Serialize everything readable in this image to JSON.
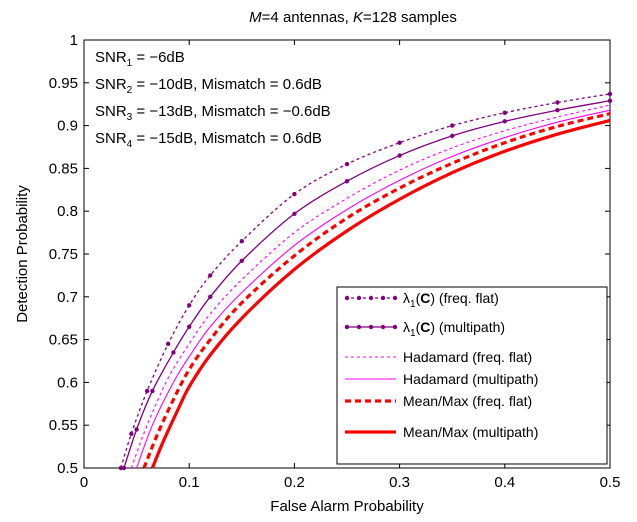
{
  "chart_data": {
    "type": "line",
    "title": {
      "m_symbol": "M",
      "m_text": "=4 antennas, ",
      "k_symbol": "K",
      "k_text": "=128 samples"
    },
    "xlabel": "False Alarm Probability",
    "ylabel": "Detection Probability",
    "xlim": [
      0,
      0.5
    ],
    "ylim": [
      0.5,
      1
    ],
    "xticks": [
      0,
      0.1,
      0.2,
      0.3,
      0.4,
      0.5
    ],
    "xtick_labels": [
      "0",
      "0.1",
      "0.2",
      "0.3",
      "0.4",
      "0.5"
    ],
    "yticks": [
      0.5,
      0.55,
      0.6,
      0.65,
      0.7,
      0.75,
      0.8,
      0.85,
      0.9,
      0.95,
      1
    ],
    "ytick_labels": [
      "0.5",
      "0.55",
      "0.6",
      "0.65",
      "0.7",
      "0.75",
      "0.8",
      "0.85",
      "0.9",
      "0.95",
      "1"
    ],
    "grid": false,
    "legend_position": "lower-right",
    "annotations": [
      {
        "base": "SNR",
        "sub": "1",
        "rest": " = −6dB"
      },
      {
        "base": "SNR",
        "sub": "2",
        "rest": " = −10dB, Mismatch = 0.6dB"
      },
      {
        "base": "SNR",
        "sub": "3",
        "rest": " = −13dB, Mismatch = −0.6dB"
      },
      {
        "base": "SNR",
        "sub": "4",
        "rest": " = −15dB, Mismatch = 0.6dB"
      }
    ],
    "series": [
      {
        "legend_symbol": "λ",
        "legend_sub": "1",
        "legend_paren": "(",
        "legend_bold": "C",
        "legend_rest": ") (freq. flat)",
        "color": "#800080",
        "dash": "3,3",
        "width": 1.3,
        "marker": true,
        "x": [
          0.035,
          0.045,
          0.06,
          0.08,
          0.1,
          0.12,
          0.15,
          0.2,
          0.25,
          0.3,
          0.35,
          0.4,
          0.45,
          0.5
        ],
        "y": [
          0.5,
          0.54,
          0.59,
          0.645,
          0.69,
          0.725,
          0.765,
          0.82,
          0.855,
          0.88,
          0.9,
          0.915,
          0.927,
          0.937
        ]
      },
      {
        "legend_symbol": "λ",
        "legend_sub": "1",
        "legend_paren": "(",
        "legend_bold": "C",
        "legend_rest": ") (multipath)",
        "color": "#800080",
        "dash": "",
        "width": 1.3,
        "marker": true,
        "x": [
          0.038,
          0.05,
          0.065,
          0.085,
          0.1,
          0.12,
          0.15,
          0.2,
          0.25,
          0.3,
          0.35,
          0.4,
          0.45,
          0.5
        ],
        "y": [
          0.5,
          0.545,
          0.59,
          0.635,
          0.665,
          0.7,
          0.742,
          0.797,
          0.835,
          0.865,
          0.888,
          0.905,
          0.918,
          0.929
        ]
      },
      {
        "legend_text": "Hadamard (freq. flat)",
        "color": "#ff00ff",
        "dash": "3,3",
        "width": 1.1,
        "marker": false,
        "x": [
          0.045,
          0.06,
          0.08,
          0.1,
          0.12,
          0.15,
          0.2,
          0.25,
          0.3,
          0.35,
          0.4,
          0.45,
          0.5
        ],
        "y": [
          0.5,
          0.55,
          0.605,
          0.645,
          0.68,
          0.72,
          0.775,
          0.815,
          0.848,
          0.874,
          0.894,
          0.91,
          0.924
        ]
      },
      {
        "legend_text": "Hadamard (multipath)",
        "color": "#ff00ff",
        "dash": "",
        "width": 1.1,
        "marker": false,
        "x": [
          0.05,
          0.065,
          0.085,
          0.1,
          0.12,
          0.15,
          0.2,
          0.25,
          0.3,
          0.35,
          0.4,
          0.45,
          0.5
        ],
        "y": [
          0.5,
          0.55,
          0.6,
          0.63,
          0.665,
          0.705,
          0.76,
          0.802,
          0.836,
          0.864,
          0.886,
          0.904,
          0.918
        ]
      },
      {
        "legend_text": "Mean/Max (freq. flat)",
        "color": "#ff0000",
        "dash": "6,4",
        "width": 3.2,
        "marker": false,
        "x": [
          0.057,
          0.07,
          0.085,
          0.1,
          0.12,
          0.15,
          0.2,
          0.25,
          0.3,
          0.35,
          0.4,
          0.45,
          0.5
        ],
        "y": [
          0.5,
          0.54,
          0.58,
          0.615,
          0.65,
          0.693,
          0.748,
          0.792,
          0.827,
          0.856,
          0.88,
          0.899,
          0.914
        ]
      },
      {
        "legend_text": "Mean/Max (multipath)",
        "color": "#ff0000",
        "dash": "",
        "width": 3.2,
        "marker": false,
        "x": [
          0.065,
          0.075,
          0.09,
          0.1,
          0.12,
          0.15,
          0.2,
          0.25,
          0.3,
          0.35,
          0.4,
          0.45,
          0.5
        ],
        "y": [
          0.5,
          0.53,
          0.57,
          0.595,
          0.632,
          0.675,
          0.732,
          0.777,
          0.814,
          0.845,
          0.87,
          0.89,
          0.906
        ]
      }
    ]
  }
}
